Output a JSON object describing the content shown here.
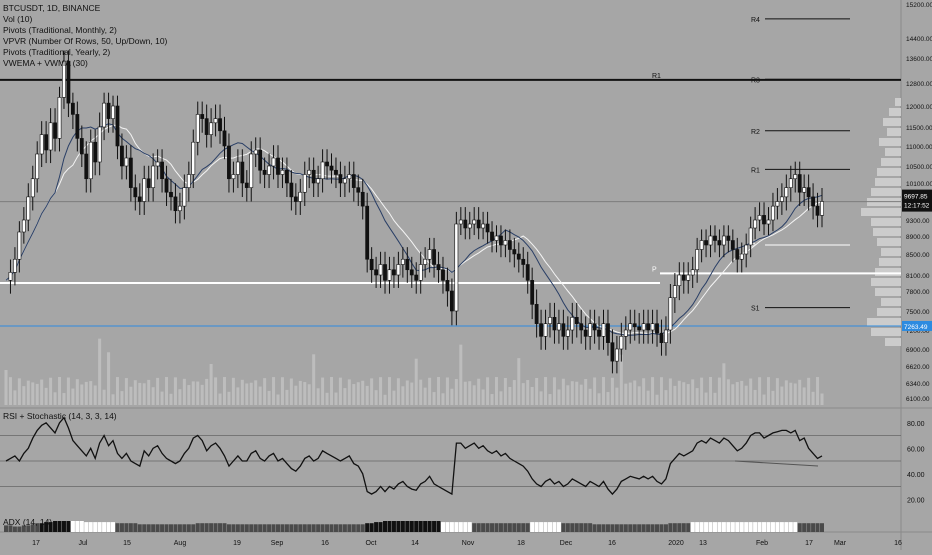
{
  "legend": {
    "symbol": "BTCUSDT, 1D, BINANCE",
    "indicators": [
      "Vol (10)",
      "Pivots (Traditional, Monthly, 2)",
      "VPVR (Number Of Rows, 50, Up/Down, 10)",
      "Pivots (Traditional, Yearly, 2)",
      "VWEMA + VWMA (30)"
    ]
  },
  "rsi_label": "RSI + Stochastic (14, 3, 3, 14)",
  "adx_label": "ADX (14, 14)",
  "colors": {
    "background": "#a6a6a6",
    "candle": "#000000",
    "vwema": "#2a3f66",
    "vwma": "#f4f4f4",
    "blue_line": "#2d8be0"
  },
  "chart_data": {
    "type": "candlestick",
    "price_axis": [
      "15200.00",
      "14400.00",
      "13600.00",
      "12800.00",
      "12000.00",
      "11500.00",
      "11000.00",
      "10500.00",
      "10100.00",
      "9300.00",
      "8900.00",
      "8500.00",
      "8100.00",
      "7800.00",
      "7500.00",
      "7200.00",
      "6900.00",
      "6620.00",
      "6340.00",
      "6100.00"
    ],
    "x_ticks": [
      "17",
      "Jul",
      "15",
      "Aug",
      "19",
      "Sep",
      "16",
      "Oct",
      "14",
      "Nov",
      "18",
      "Dec",
      "16",
      "2020",
      "13",
      "Feb",
      "17",
      "Mar",
      "16"
    ],
    "current_price": "9697.85",
    "countdown": "12:17:52",
    "blue_level": "7263.49",
    "pivot_levels": [
      {
        "label": "R4",
        "value": 14850
      },
      {
        "label": "R3",
        "value": 12920
      },
      {
        "label": "R2",
        "value": 11400
      },
      {
        "label": "R1",
        "value": 10420
      },
      {
        "label": "P",
        "value": 8700
      },
      {
        "label": "S1",
        "value": 7550
      }
    ],
    "yearly_levels": [
      {
        "label": "R1",
        "value": 12900
      },
      {
        "label": "P",
        "value": 8130
      }
    ],
    "white_level_2019": 7950,
    "price_series": [
      8000,
      8150,
      8400,
      9000,
      9300,
      9800,
      10200,
      10800,
      11300,
      10900,
      11600,
      11200,
      12300,
      13500,
      12100,
      11800,
      11200,
      10800,
      10200,
      11100,
      10600,
      11500,
      12100,
      11700,
      12000,
      11000,
      10500,
      10700,
      10000,
      9800,
      9700,
      10200,
      10000,
      10500,
      10600,
      10200,
      9900,
      9800,
      9500,
      9600,
      10000,
      10300,
      11100,
      11800,
      11700,
      11300,
      11600,
      11700,
      11400,
      11000,
      10200,
      10300,
      10600,
      10100,
      10000,
      10800,
      10900,
      10400,
      10300,
      10500,
      10700,
      10300,
      10400,
      10100,
      9800,
      9700,
      9900,
      10300,
      10400,
      10100,
      10200,
      10600,
      10500,
      10400,
      10300,
      10100,
      10200,
      10300,
      10000,
      9900,
      9600,
      8400,
      8200,
      8100,
      8300,
      8000,
      8200,
      8100,
      8300,
      8400,
      8200,
      8100,
      8000,
      8300,
      8400,
      8600,
      8300,
      8200,
      8000,
      7800,
      7500,
      9200,
      9300,
      9100,
      9200,
      9300,
      9100,
      9200,
      9000,
      8800,
      8900,
      8700,
      8800,
      8600,
      8500,
      8400,
      8300,
      8000,
      7600,
      7300,
      7100,
      7300,
      7400,
      7200,
      7300,
      7100,
      7200,
      7400,
      7300,
      7200,
      7100,
      7300,
      7200,
      7100,
      7300,
      7000,
      6700,
      6900,
      7100,
      7200,
      7300,
      7250,
      7200,
      7300,
      7200,
      7300,
      7150,
      7000,
      7200,
      7700,
      7900,
      8100,
      8000,
      8100,
      8200,
      8600,
      8800,
      8700,
      8900,
      8800,
      8700,
      8900,
      8800,
      8600,
      8400,
      8500,
      8700,
      9100,
      9300,
      9400,
      9200,
      9300,
      9600,
      9700,
      9800,
      10000,
      10200,
      10300,
      9900,
      10000,
      9800,
      9600,
      9400,
      9700
    ],
    "rsi_axis": [
      "80.00",
      "60.00",
      "40.00",
      "20.00"
    ],
    "rsi_series": [
      50,
      52,
      54,
      50,
      56,
      60,
      68,
      74,
      78,
      80,
      76,
      72,
      80,
      84,
      76,
      66,
      62,
      58,
      54,
      60,
      52,
      64,
      70,
      62,
      66,
      56,
      52,
      56,
      50,
      48,
      46,
      58,
      54,
      60,
      62,
      56,
      52,
      50,
      48,
      50,
      56,
      60,
      68,
      70,
      66,
      58,
      62,
      64,
      60,
      54,
      46,
      50,
      54,
      50,
      50,
      56,
      58,
      52,
      50,
      54,
      56,
      50,
      52,
      48,
      44,
      42,
      46,
      52,
      54,
      50,
      52,
      58,
      56,
      54,
      52,
      50,
      52,
      54,
      48,
      46,
      40,
      26,
      24,
      26,
      30,
      26,
      30,
      28,
      32,
      34,
      30,
      28,
      27,
      32,
      34,
      38,
      32,
      30,
      28,
      26,
      24,
      64,
      64,
      60,
      62,
      64,
      60,
      62,
      58,
      56,
      58,
      54,
      56,
      52,
      50,
      48,
      46,
      42,
      36,
      32,
      30,
      34,
      36,
      32,
      34,
      30,
      32,
      36,
      34,
      32,
      30,
      34,
      32,
      30,
      34,
      28,
      24,
      28,
      34,
      36,
      38,
      37,
      36,
      38,
      36,
      38,
      34,
      32,
      36,
      48,
      52,
      56,
      54,
      56,
      58,
      64,
      66,
      64,
      68,
      66,
      64,
      68,
      66,
      62,
      58,
      60,
      64,
      70,
      72,
      72,
      68,
      70,
      72,
      73,
      74,
      74,
      72,
      74,
      66,
      68,
      60,
      56,
      52,
      54
    ],
    "adx_series": [
      6,
      6,
      5,
      5,
      6,
      6,
      7,
      8,
      8,
      9,
      9,
      10,
      10,
      10,
      10,
      10,
      10,
      10,
      9,
      9,
      9,
      9,
      9,
      9,
      9,
      8,
      8,
      8,
      8,
      8,
      7,
      7,
      7,
      7,
      7,
      7,
      7,
      7,
      7,
      7,
      7,
      7,
      7,
      8,
      8,
      8,
      8,
      8,
      8,
      8,
      7,
      7,
      7,
      7,
      7,
      7,
      7,
      7,
      7,
      7,
      7,
      7,
      7,
      7,
      7,
      7,
      7,
      7,
      7,
      7,
      7,
      7,
      7,
      7,
      7,
      7,
      7,
      7,
      7,
      7,
      7,
      8,
      8,
      9,
      9,
      10,
      10,
      10,
      10,
      10,
      10,
      10,
      10,
      10,
      10,
      10,
      10,
      10,
      9,
      9,
      9,
      9,
      9,
      9,
      9,
      8,
      8,
      8,
      8,
      8,
      8,
      8,
      8,
      8,
      8,
      8,
      8,
      8,
      9,
      9,
      9,
      9,
      9,
      9,
      9,
      8,
      8,
      8,
      8,
      8,
      8,
      8,
      7,
      7,
      7,
      7,
      7,
      7,
      7,
      7,
      7,
      7,
      7,
      7,
      7,
      7,
      7,
      7,
      7,
      8,
      8,
      8,
      8,
      8,
      9,
      9,
      9,
      9,
      9,
      9,
      9,
      9,
      9,
      9,
      9,
      9,
      9,
      9,
      9,
      9,
      9,
      9,
      9,
      9,
      9,
      9,
      9,
      9,
      8,
      8,
      8,
      8,
      8,
      8
    ]
  }
}
